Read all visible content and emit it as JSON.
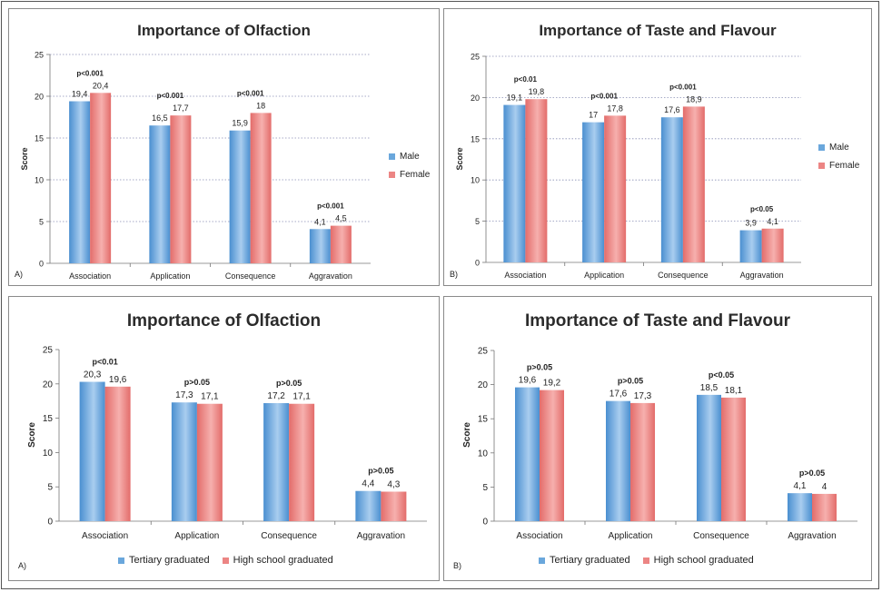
{
  "chart_data": [
    {
      "type": "bar",
      "title": "Importance of Olfaction",
      "panel_label": "A)",
      "ylabel": "Score",
      "ylim": [
        0,
        25
      ],
      "yticks": [
        0,
        5,
        10,
        15,
        20,
        25
      ],
      "grid": true,
      "legend_position": "right",
      "categories": [
        "Association",
        "Application",
        "Consequence",
        "Aggravation"
      ],
      "series": [
        {
          "name": "Male",
          "values": [
            19.4,
            16.5,
            15.9,
            4.1
          ],
          "labels": [
            "19,4",
            "16,5",
            "15,9",
            "4,1"
          ]
        },
        {
          "name": "Female",
          "values": [
            20.4,
            17.7,
            18,
            4.5
          ],
          "labels": [
            "20,4",
            "17,7",
            "18",
            "4,5"
          ]
        }
      ],
      "annotations": [
        "p<0.001",
        "p<0.001",
        "p<0.001",
        "p<0.001"
      ]
    },
    {
      "type": "bar",
      "title": "Importance of Taste and Flavour",
      "panel_label": "B)",
      "ylabel": "Score",
      "ylim": [
        0,
        25
      ],
      "yticks": [
        0,
        5,
        10,
        15,
        20,
        25
      ],
      "grid": true,
      "legend_position": "right",
      "categories": [
        "Association",
        "Application",
        "Consequence",
        "Aggravation"
      ],
      "series": [
        {
          "name": "Male",
          "values": [
            19.1,
            17,
            17.6,
            3.9
          ],
          "labels": [
            "19,1",
            "17",
            "17,6",
            "3,9"
          ]
        },
        {
          "name": "Female",
          "values": [
            19.8,
            17.8,
            18.9,
            4.1
          ],
          "labels": [
            "19,8",
            "17,8",
            "18,9",
            "4,1"
          ]
        }
      ],
      "annotations": [
        "p<0.01",
        "p<0.001",
        "p<0.001",
        "p<0.05"
      ]
    },
    {
      "type": "bar",
      "title": "Importance of Olfaction",
      "panel_label": "A)",
      "ylabel": "Score",
      "ylim": [
        0,
        25
      ],
      "yticks": [
        0,
        5,
        10,
        15,
        20,
        25
      ],
      "grid": false,
      "legend_position": "bottom",
      "categories": [
        "Association",
        "Application",
        "Consequence",
        "Aggravation"
      ],
      "series": [
        {
          "name": "Tertiary graduated",
          "values": [
            20.3,
            17.3,
            17.2,
            4.4
          ],
          "labels": [
            "20,3",
            "17,3",
            "17,2",
            "4,4"
          ]
        },
        {
          "name": "High school graduated",
          "values": [
            19.6,
            17.1,
            17.1,
            4.3
          ],
          "labels": [
            "19,6",
            "17,1",
            "17,1",
            "4,3"
          ]
        }
      ],
      "annotations": [
        "p<0.01",
        "p>0.05",
        "p>0.05",
        "p>0.05"
      ]
    },
    {
      "type": "bar",
      "title": "Importance of Taste and Flavour",
      "panel_label": "B)",
      "ylabel": "Score",
      "ylim": [
        0,
        25
      ],
      "yticks": [
        0,
        5,
        10,
        15,
        20,
        25
      ],
      "grid": false,
      "legend_position": "bottom",
      "categories": [
        "Association",
        "Application",
        "Consequence",
        "Aggravation"
      ],
      "series": [
        {
          "name": "Tertiary graduated",
          "values": [
            19.6,
            17.6,
            18.5,
            4.1
          ],
          "labels": [
            "19,6",
            "17,6",
            "18,5",
            "4,1"
          ]
        },
        {
          "name": "High school graduated",
          "values": [
            19.2,
            17.3,
            18.1,
            4
          ],
          "labels": [
            "19,2",
            "17,3",
            "18,1",
            "4"
          ]
        }
      ],
      "annotations": [
        "p>0.05",
        "p>0.05",
        "p<0.05",
        "p>0.05"
      ]
    }
  ]
}
